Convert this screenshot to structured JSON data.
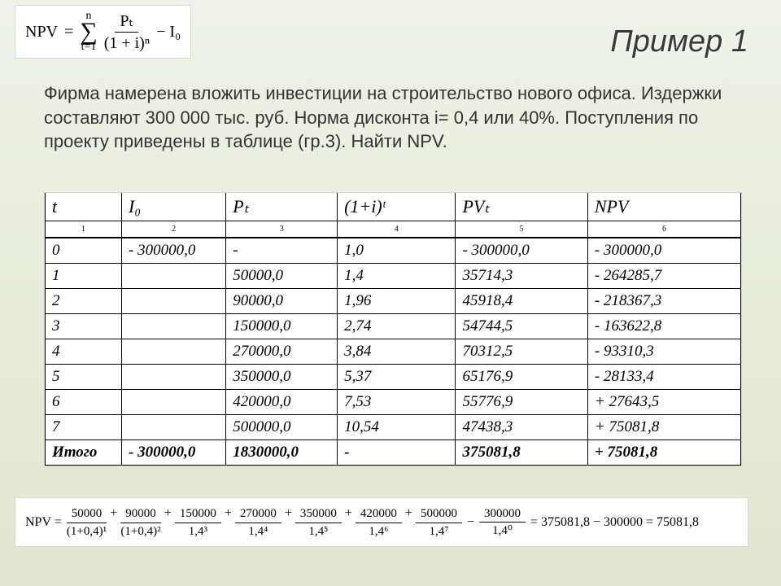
{
  "title": "Пример 1",
  "formula_top": {
    "lhs": "NPV",
    "sigma_upper": "n",
    "sigma_lower": "t=1",
    "frac_num": "Pₜ",
    "frac_den": "(1 + i)ⁿ",
    "tail": "− I₀"
  },
  "problem_text": "Фирма намерена вложить инвестиции на строительство нового офиса. Издержки составляют 300 000 тыс. руб. Норма дисконта i= 0,4 или 40%. Поступления по проекту приведены в таблице (гр.3). Найти NPV.",
  "table": {
    "headers_main": [
      "t",
      "I₀",
      "Pₜ",
      "(1+i)ᵗ",
      "PVₜ",
      "NPV"
    ],
    "headers_idx": [
      "1",
      "2",
      "3",
      "4",
      "5",
      "6"
    ],
    "rows": [
      [
        "0",
        "- 300000,0",
        "-",
        "1,0",
        "- 300000,0",
        "- 300000,0"
      ],
      [
        "1",
        "",
        "50000,0",
        "1,4",
        "35714,3",
        "- 264285,7"
      ],
      [
        "2",
        "",
        "90000,0",
        "1,96",
        "45918,4",
        "- 218367,3"
      ],
      [
        "3",
        "",
        "150000,0",
        "2,74",
        "54744,5",
        "- 163622,8"
      ],
      [
        "4",
        "",
        "270000,0",
        "3,84",
        "70312,5",
        "- 93310,3"
      ],
      [
        "5",
        "",
        "350000,0",
        "5,37",
        "65176,9",
        "- 28133,4"
      ],
      [
        "6",
        "",
        "420000,0",
        "7,53",
        "55776,9",
        "+ 27643,5"
      ],
      [
        "7",
        "",
        "500000,0",
        "10,54",
        "47438,3",
        "+ 75081,8"
      ],
      [
        "Итого",
        "- 300000,0",
        "1830000,0",
        "-",
        "375081,8",
        "+ 75081,8"
      ]
    ]
  },
  "bottom": {
    "lhs": "NPV =",
    "terms": [
      {
        "num": "50000",
        "den": "(1+0,4)¹"
      },
      {
        "num": "90000",
        "den": "(1+0,4)²"
      },
      {
        "num": "150000",
        "den": "1,4³"
      },
      {
        "num": "270000",
        "den": "1,4⁴"
      },
      {
        "num": "350000",
        "den": "1,4⁵"
      },
      {
        "num": "420000",
        "den": "1,4⁶"
      },
      {
        "num": "500000",
        "den": "1,4⁷"
      }
    ],
    "minus": {
      "num": "300000",
      "den": "1,4⁰"
    },
    "rhs": "= 375081,8 − 300000 = 75081,8"
  },
  "style": {
    "background_gradient": [
      "#eef2e8",
      "#dfe5cf"
    ],
    "title_fontsize": 38,
    "body_fontsize": 22,
    "table_fontsize": 19,
    "table_font": "Times New Roman",
    "body_font": "Arial",
    "title_color": "#3a3a3a",
    "text_color": "#333333",
    "border_color": "#000000",
    "box_bg": "#ffffff"
  }
}
